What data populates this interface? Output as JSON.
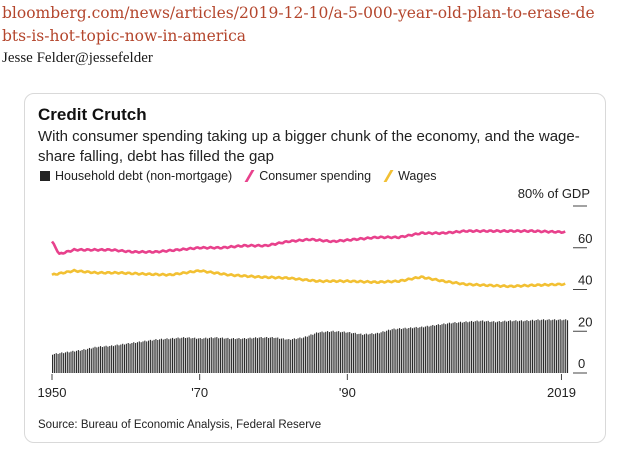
{
  "page": {
    "url": "bloomberg.com/news/articles/2019-12-10/a-5-000-year-old-plan-to-erase-debts-is-hot-topic-now-in-america",
    "author": "Jesse Felder@jessefelder"
  },
  "chart_data": {
    "type": "bar",
    "title": "Credit Crutch",
    "subtitle": "With consumer spending taking up a bigger chunk of the economy, and the wage-share falling, debt has filled the gap",
    "unit_label": "80% of GDP",
    "source": "Source: Bureau of Economic Analysis, Federal Reserve",
    "ylim": [
      0,
      80
    ],
    "yticks": [
      "60",
      "40",
      "20",
      "0"
    ],
    "ytick_values": [
      60,
      40,
      20,
      0
    ],
    "xlim": [
      1950,
      2019.75
    ],
    "xticks": [
      "1950",
      "'70",
      "'90",
      "2019"
    ],
    "xtick_values": [
      1950,
      1970,
      1990,
      2019
    ],
    "legend": [
      {
        "name": "Household debt (non-mortgage)",
        "color": "#222222",
        "kind": "bar"
      },
      {
        "name": "Consumer spending",
        "color": "#e8418c",
        "kind": "line"
      },
      {
        "name": "Wages",
        "color": "#f2c033",
        "kind": "line"
      }
    ],
    "household_debt": {
      "years": [
        1950,
        1952,
        1954,
        1956,
        1958,
        1960,
        1962,
        1964,
        1966,
        1968,
        1970,
        1972,
        1974,
        1976,
        1978,
        1980,
        1982,
        1984,
        1986,
        1988,
        1990,
        1992,
        1994,
        1996,
        1998,
        2000,
        2002,
        2004,
        2006,
        2008,
        2010,
        2012,
        2014,
        2016,
        2019
      ],
      "values": [
        9,
        10,
        11,
        12.5,
        13,
        14,
        15,
        16,
        16.5,
        17,
        16.5,
        17,
        16.5,
        16.5,
        17,
        17,
        16,
        17,
        19.5,
        20,
        19.5,
        18.5,
        19,
        21,
        21.5,
        22,
        23,
        24,
        24.5,
        25,
        24.5,
        25,
        25,
        25.5,
        25.5
      ]
    },
    "consumer_spending": {
      "years": [
        1950,
        1951,
        1953,
        1955,
        1958,
        1961,
        1964,
        1967,
        1970,
        1973,
        1976,
        1979,
        1982,
        1985,
        1988,
        1991,
        1994,
        1997,
        2000,
        2003,
        2006,
        2009,
        2012,
        2015,
        2019
      ],
      "values": [
        63,
        57,
        59,
        59,
        59,
        58,
        58,
        59,
        60,
        60,
        61,
        61,
        63,
        64,
        63,
        64,
        65,
        65,
        67,
        67,
        68,
        68,
        68,
        68,
        67.5
      ]
    },
    "wages": {
      "years": [
        1950,
        1953,
        1956,
        1959,
        1962,
        1966,
        1970,
        1974,
        1978,
        1982,
        1986,
        1990,
        1994,
        1997,
        2000,
        2003,
        2006,
        2009,
        2012,
        2015,
        2019
      ],
      "values": [
        47,
        49,
        48,
        48,
        47.5,
        47,
        49,
        47,
        46,
        45.5,
        44,
        44,
        43.5,
        44,
        46,
        44,
        42.5,
        42,
        41.5,
        42,
        42.5
      ]
    }
  }
}
